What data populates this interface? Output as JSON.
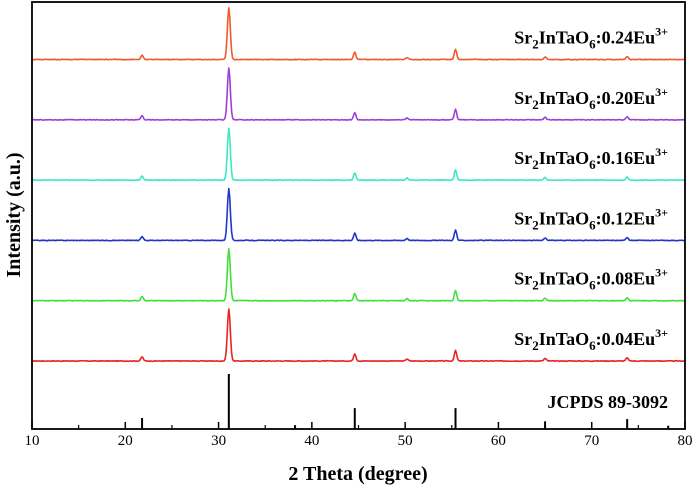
{
  "chart_data": {
    "type": "line",
    "title": "",
    "xlabel": "2 Theta (degree)",
    "ylabel": "Intensity (a.u.)",
    "xlim": [
      10,
      80
    ],
    "xticks": [
      10,
      20,
      30,
      40,
      50,
      60,
      70,
      80
    ],
    "peaks": [
      {
        "pos": 21.8,
        "rel": 0.08
      },
      {
        "pos": 31.1,
        "rel": 1.0
      },
      {
        "pos": 44.6,
        "rel": 0.14
      },
      {
        "pos": 50.2,
        "rel": 0.04
      },
      {
        "pos": 55.4,
        "rel": 0.2
      },
      {
        "pos": 65.0,
        "rel": 0.05
      },
      {
        "pos": 73.8,
        "rel": 0.06
      }
    ],
    "series": [
      {
        "name": "Sr2InTaO6:0.04Eu3+",
        "base": "Sr",
        "sub1": "2",
        "mid": "InTaO",
        "sub2": "6",
        "conc": ":0.04Eu",
        "sup": "3+",
        "color": "#e8231f"
      },
      {
        "name": "Sr2InTaO6:0.08Eu3+",
        "base": "Sr",
        "sub1": "2",
        "mid": "InTaO",
        "sub2": "6",
        "conc": ":0.08Eu",
        "sup": "3+",
        "color": "#3fe03c"
      },
      {
        "name": "Sr2InTaO6:0.12Eu3+",
        "base": "Sr",
        "sub1": "2",
        "mid": "InTaO",
        "sub2": "6",
        "conc": ":0.12Eu",
        "sup": "3+",
        "color": "#2334c8"
      },
      {
        "name": "Sr2InTaO6:0.16Eu3+",
        "base": "Sr",
        "sub1": "2",
        "mid": "InTaO",
        "sub2": "6",
        "conc": ":0.16Eu",
        "sup": "3+",
        "color": "#3fe6c4"
      },
      {
        "name": "Sr2InTaO6:0.20Eu3+",
        "base": "Sr",
        "sub1": "2",
        "mid": "InTaO",
        "sub2": "6",
        "conc": ":0.20Eu",
        "sup": "3+",
        "color": "#9a40d8"
      },
      {
        "name": "Sr2InTaO6:0.24Eu3+",
        "base": "Sr",
        "sub1": "2",
        "mid": "InTaO",
        "sub2": "6",
        "conc": ":0.24Eu",
        "sup": "3+",
        "color": "#f05a28"
      }
    ],
    "reference": {
      "label": "JCPDS 89-3092",
      "sticks": [
        {
          "pos": 21.8,
          "rel": 0.2
        },
        {
          "pos": 31.1,
          "rel": 1.0
        },
        {
          "pos": 38.2,
          "rel": 0.07
        },
        {
          "pos": 44.6,
          "rel": 0.38
        },
        {
          "pos": 55.4,
          "rel": 0.38
        },
        {
          "pos": 65.0,
          "rel": 0.14
        },
        {
          "pos": 73.8,
          "rel": 0.18
        },
        {
          "pos": 78.2,
          "rel": 0.06
        }
      ]
    }
  }
}
